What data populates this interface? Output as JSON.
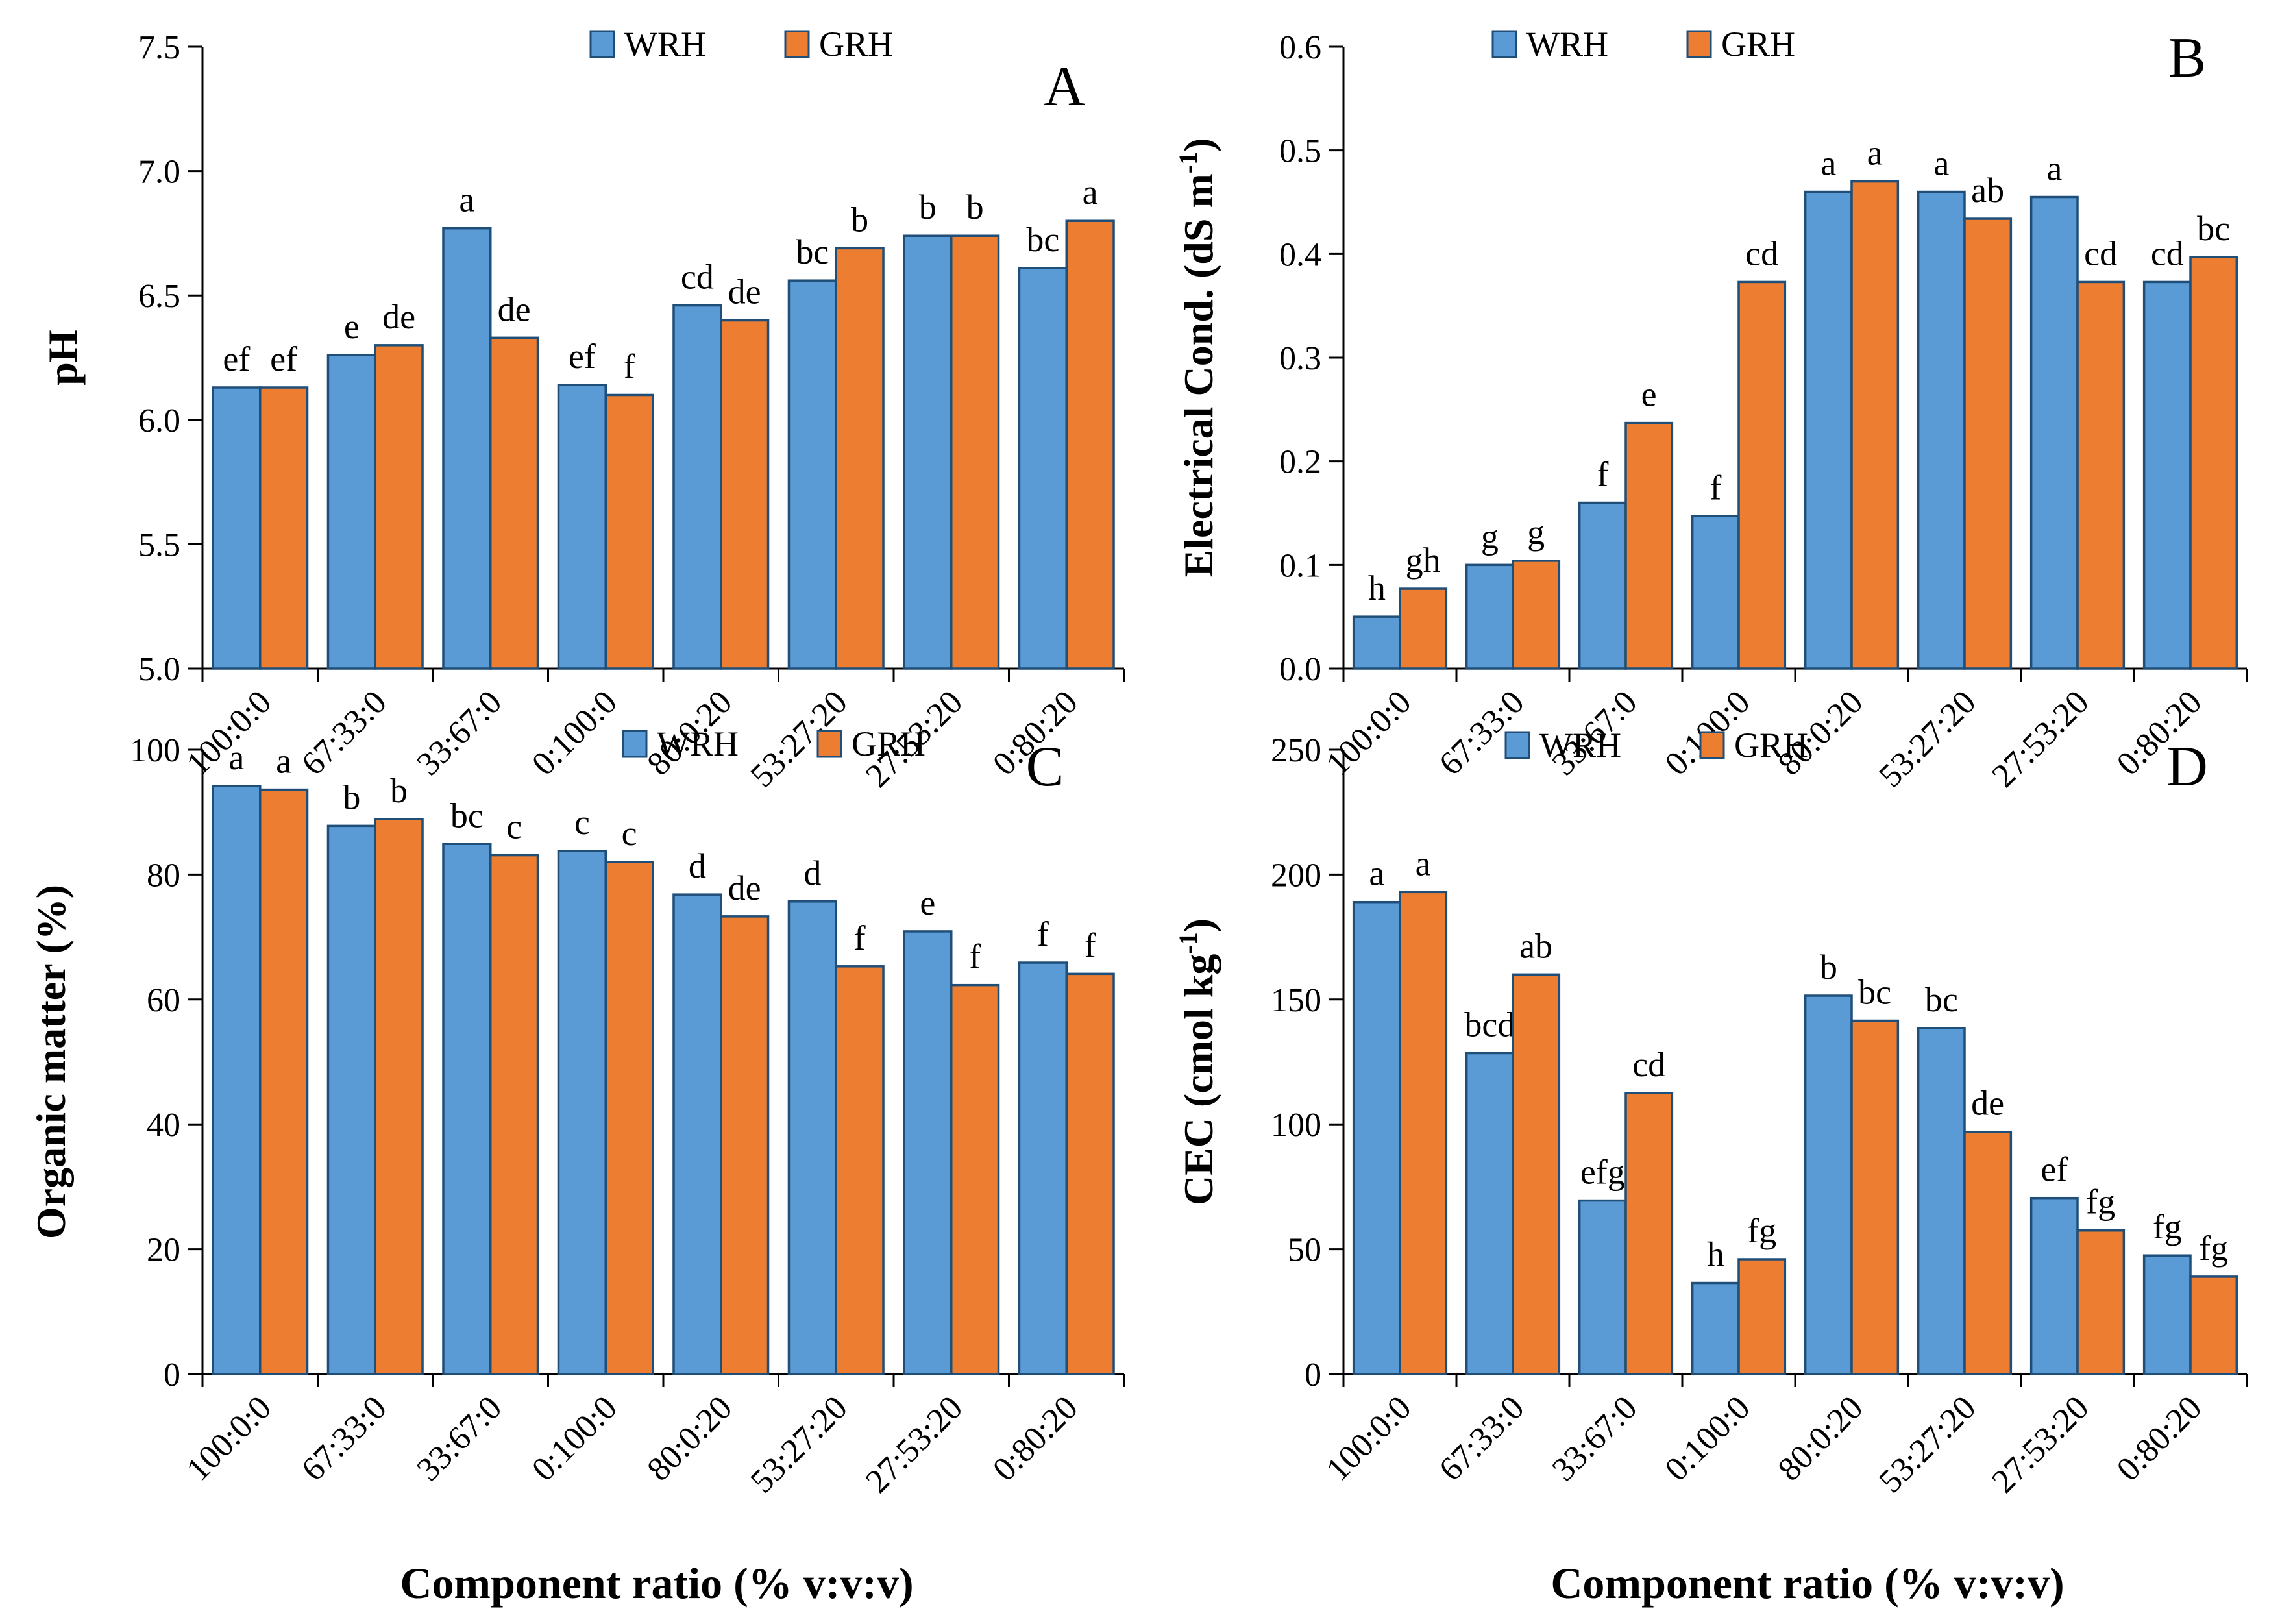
{
  "colors": {
    "WRH": "#5b9bd5",
    "GRH": "#ed7d31",
    "bar_stroke": "#1f4e79"
  },
  "chart_data": [
    {
      "type": "bar",
      "panel": "A",
      "title": "",
      "xlabel": "",
      "ylabel": "pH",
      "ylim": [
        5.0,
        7.5
      ],
      "yticks": [
        "5.0",
        "5.5",
        "6.0",
        "6.5",
        "7.0",
        "7.5"
      ],
      "categories": [
        "100:0:0",
        "67:33:0",
        "33:67:0",
        "0:100:0",
        "80:0:20",
        "53:27:20",
        "27:53:20",
        "0:80:20"
      ],
      "legend": [
        "WRH",
        "GRH"
      ],
      "legend_position": "top-center",
      "series": [
        {
          "name": "WRH",
          "values": [
            6.13,
            6.26,
            6.77,
            6.14,
            6.46,
            6.56,
            6.74,
            6.61
          ],
          "labels": [
            "ef",
            "e",
            "a",
            "ef",
            "cd",
            "bc",
            "b",
            "bc"
          ]
        },
        {
          "name": "GRH",
          "values": [
            6.13,
            6.3,
            6.33,
            6.1,
            6.4,
            6.69,
            6.74,
            6.8
          ],
          "labels": [
            "ef",
            "de",
            "de",
            "f",
            "de",
            "b",
            "b",
            "a"
          ]
        }
      ]
    },
    {
      "type": "bar",
      "panel": "B",
      "title": "",
      "xlabel": "",
      "ylabel": "Electrical Cond. (dS m",
      "ylabel_sup": "-1",
      "ylabel_end": ")",
      "ylim": [
        0.0,
        0.6
      ],
      "yticks": [
        "0.0",
        "0.1",
        "0.2",
        "0.3",
        "0.4",
        "0.5",
        "0.6"
      ],
      "categories": [
        "100:0:0",
        "67:33:0",
        "33:67:0",
        "0:100:0",
        "80:0:20",
        "53:27:20",
        "27:53:20",
        "0:80:20"
      ],
      "legend": [
        "WRH",
        "GRH"
      ],
      "legend_position": "top-center",
      "series": [
        {
          "name": "WRH",
          "values": [
            0.05,
            0.1,
            0.16,
            0.147,
            0.46,
            0.46,
            0.455,
            0.373
          ],
          "labels": [
            "h",
            "g",
            "f",
            "f",
            "a",
            "a",
            "a",
            "cd"
          ]
        },
        {
          "name": "GRH",
          "values": [
            0.077,
            0.104,
            0.237,
            0.373,
            0.47,
            0.434,
            0.373,
            0.397
          ],
          "labels": [
            "gh",
            "g",
            "e",
            "cd",
            "a",
            "ab",
            "cd",
            "bc"
          ]
        }
      ]
    },
    {
      "type": "bar",
      "panel": "C",
      "title": "",
      "xlabel": "Component ratio (% v:v:v)",
      "ylabel": "Organic matter (%)",
      "ylim": [
        0,
        100
      ],
      "yticks": [
        "0",
        "20",
        "40",
        "60",
        "80",
        "100"
      ],
      "categories": [
        "100:0:0",
        "67:33:0",
        "33:67:0",
        "0:100:0",
        "80:0:20",
        "53:27:20",
        "27:53:20",
        "0:80:20"
      ],
      "legend": [
        "WRH",
        "GRH"
      ],
      "legend_position": "top-right",
      "series": [
        {
          "name": "WRH",
          "values": [
            94.2,
            87.8,
            84.9,
            83.8,
            76.8,
            75.7,
            70.9,
            65.9
          ],
          "labels": [
            "a",
            "b",
            "bc",
            "c",
            "d",
            "d",
            "e",
            "f"
          ]
        },
        {
          "name": "GRH",
          "values": [
            93.6,
            88.9,
            83.1,
            82.0,
            73.3,
            65.3,
            62.3,
            64.1
          ],
          "labels": [
            "a",
            "b",
            "c",
            "c",
            "de",
            "f",
            "f",
            "f"
          ]
        }
      ]
    },
    {
      "type": "bar",
      "panel": "D",
      "title": "",
      "xlabel": "Component ratio (% v:v:v)",
      "ylabel": "CEC (cmol kg",
      "ylabel_sup": "-1",
      "ylabel_end": ")",
      "ylim": [
        0,
        250
      ],
      "yticks": [
        "0",
        "50",
        "100",
        "150",
        "200",
        "250"
      ],
      "categories": [
        "100:0:0",
        "67:33:0",
        "33:67:0",
        "0:100:0",
        "80:0:20",
        "53:27:20",
        "27:53:20",
        "0:80:20"
      ],
      "legend": [
        "WRH",
        "GRH"
      ],
      "legend_position": "top-center",
      "series": [
        {
          "name": "WRH",
          "values": [
            189,
            128.5,
            69.5,
            36.5,
            151.5,
            138.5,
            70.5,
            47.5
          ],
          "labels": [
            "a",
            "bcd",
            "efg",
            "h",
            "b",
            "bc",
            "ef",
            "fg"
          ]
        },
        {
          "name": "GRH",
          "values": [
            193,
            160,
            112.5,
            46,
            141.5,
            97,
            57.5,
            39
          ],
          "labels": [
            "a",
            "ab",
            "cd",
            "fg",
            "bc",
            "de",
            "fg",
            "fg"
          ]
        }
      ]
    }
  ]
}
